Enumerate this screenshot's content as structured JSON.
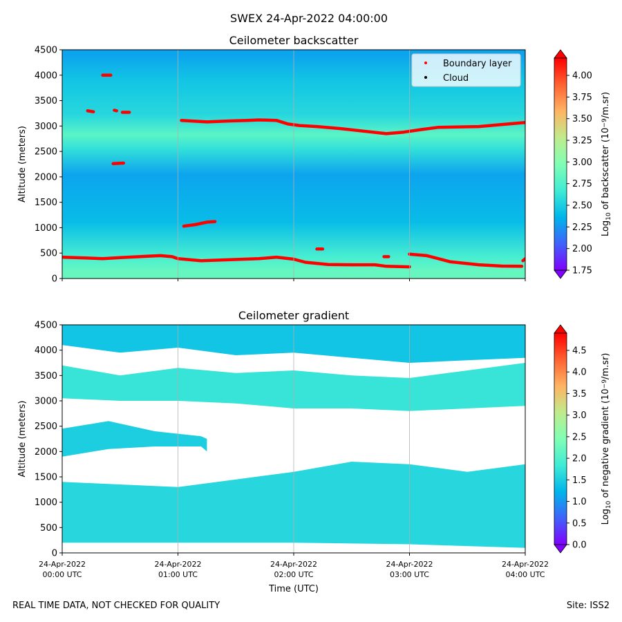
{
  "suptitle": "SWEX 24-Apr-2022 04:00:00",
  "footer": {
    "left": "REAL TIME DATA, NOT CHECKED FOR QUALITY",
    "right": "Site: ISS2"
  },
  "colors": {
    "boundary_layer": "#ff0000",
    "cloud": "#000000",
    "grid": "#b0b0b0",
    "colormap": [
      "#8000ff",
      "#4062fa",
      "#00b5eb",
      "#40ecd4",
      "#80ffb4",
      "#c0eb8d",
      "#ffb462",
      "#ff6232",
      "#ff0000"
    ]
  },
  "x_ticks": [
    {
      "l1": "24-Apr-2022",
      "l2": "00:00 UTC"
    },
    {
      "l1": "24-Apr-2022",
      "l2": "01:00 UTC"
    },
    {
      "l1": "24-Apr-2022",
      "l2": "02:00 UTC"
    },
    {
      "l1": "24-Apr-2022",
      "l2": "03:00 UTC"
    },
    {
      "l1": "24-Apr-2022",
      "l2": "04:00 UTC"
    }
  ],
  "xlabel": "Time (UTC)",
  "chart_data": [
    {
      "type": "heatmap",
      "title": "Ceilometer backscatter",
      "xlabel": "Time (UTC)",
      "ylabel": "Altitude (meters)",
      "xlim_hours": [
        0,
        4
      ],
      "ylim": [
        0,
        4500
      ],
      "yticks": [
        0,
        500,
        1000,
        1500,
        2000,
        2500,
        3000,
        3500,
        4000,
        4500
      ],
      "colorbar": {
        "label_prefix": "Log",
        "label_sub": "10",
        "label_mid": " of backscatter (10",
        "label_sup": "−9",
        "label_suffix": "/m.sr)",
        "range": [
          1.75,
          4.2
        ],
        "ticks": [
          "1.75",
          "2.00",
          "2.25",
          "2.50",
          "2.75",
          "3.00",
          "3.25",
          "3.50",
          "3.75",
          "4.00"
        ]
      },
      "legend": {
        "placement": "top-right",
        "items": [
          "Boundary layer",
          "Cloud"
        ]
      },
      "boundary_layer_series": [
        {
          "name": "bl-low",
          "points": [
            [
              0,
              420
            ],
            [
              0.2,
              405
            ],
            [
              0.35,
              390
            ],
            [
              0.5,
              410
            ],
            [
              0.75,
              440
            ],
            [
              0.85,
              450
            ],
            [
              0.95,
              430
            ],
            [
              1.0,
              390
            ],
            [
              1.2,
              350
            ],
            [
              1.45,
              370
            ],
            [
              1.7,
              390
            ],
            [
              1.85,
              420
            ],
            [
              2.0,
              380
            ],
            [
              2.1,
              320
            ],
            [
              2.3,
              275
            ],
            [
              2.5,
              270
            ],
            [
              2.7,
              270
            ],
            [
              2.8,
              240
            ],
            [
              3.0,
              230
            ]
          ]
        },
        {
          "name": "bl-low-2",
          "points": [
            [
              3.0,
              480
            ],
            [
              3.15,
              450
            ],
            [
              3.35,
              330
            ],
            [
              3.6,
              270
            ],
            [
              3.8,
              245
            ],
            [
              3.97,
              240
            ]
          ]
        },
        {
          "name": "bl-high",
          "points": [
            [
              1.03,
              3110
            ],
            [
              1.25,
              3080
            ],
            [
              1.45,
              3100
            ],
            [
              1.6,
              3110
            ],
            [
              1.7,
              3120
            ],
            [
              1.85,
              3110
            ],
            [
              1.95,
              3040
            ],
            [
              2.05,
              3010
            ],
            [
              2.2,
              2990
            ],
            [
              2.4,
              2950
            ],
            [
              2.6,
              2900
            ],
            [
              2.8,
              2850
            ],
            [
              2.95,
              2880
            ],
            [
              3.1,
              2930
            ],
            [
              3.25,
              2975
            ],
            [
              3.4,
              2980
            ],
            [
              3.6,
              2990
            ],
            [
              3.8,
              3030
            ],
            [
              4.0,
              3070
            ]
          ]
        },
        {
          "name": "bl-mid",
          "points": [
            [
              1.05,
              1030
            ],
            [
              1.15,
              1060
            ],
            [
              1.25,
              1110
            ],
            [
              1.32,
              1120
            ]
          ]
        },
        {
          "name": "seg-1",
          "points": [
            [
              0.35,
              4000
            ],
            [
              0.42,
              4000
            ]
          ]
        },
        {
          "name": "seg-2",
          "points": [
            [
              0.22,
              3300
            ],
            [
              0.27,
              3280
            ]
          ]
        },
        {
          "name": "seg-3",
          "points": [
            [
              0.45,
              3310
            ],
            [
              0.47,
              3300
            ]
          ]
        },
        {
          "name": "seg-4",
          "points": [
            [
              0.52,
              3270
            ],
            [
              0.58,
              3270
            ]
          ]
        },
        {
          "name": "seg-5",
          "points": [
            [
              0.44,
              2260
            ],
            [
              0.53,
              2270
            ]
          ]
        },
        {
          "name": "seg-6",
          "points": [
            [
              2.2,
              580
            ],
            [
              2.25,
              580
            ]
          ]
        },
        {
          "name": "seg-7",
          "points": [
            [
              2.78,
              430
            ],
            [
              2.82,
              430
            ]
          ]
        },
        {
          "name": "seg-8",
          "points": [
            [
              3.98,
              350
            ],
            [
              4.0,
              390
            ]
          ]
        }
      ],
      "bands": [
        {
          "y0": 0,
          "y1": 300,
          "v": 2.85
        },
        {
          "y0": 300,
          "y1": 550,
          "v": 2.7
        },
        {
          "y0": 550,
          "y1": 1700,
          "v": 2.4
        },
        {
          "y0": 1700,
          "y1": 2400,
          "v": 2.3
        },
        {
          "y0": 2400,
          "y1": 2700,
          "v": 2.6
        },
        {
          "y0": 2700,
          "y1": 2950,
          "v": 2.8
        },
        {
          "y0": 2950,
          "y1": 3500,
          "v": 2.55
        },
        {
          "y0": 3500,
          "y1": 4300,
          "v": 2.45
        },
        {
          "y0": 4300,
          "y1": 4500,
          "v": 2.3
        }
      ]
    },
    {
      "type": "heatmap",
      "title": "Ceilometer gradient",
      "xlabel": "Time (UTC)",
      "ylabel": "Altitude (meters)",
      "xlim_hours": [
        0,
        4
      ],
      "ylim": [
        0,
        4500
      ],
      "yticks": [
        0,
        500,
        1000,
        1500,
        2000,
        2500,
        3000,
        3500,
        4000,
        4500
      ],
      "colorbar": {
        "label_prefix": "Log",
        "label_sub": "10",
        "label_mid": " of negative gradient (10",
        "label_sup": "−9",
        "label_suffix": "/m.sr)",
        "range": [
          0,
          4.9
        ],
        "ticks": [
          "0.0",
          "0.5",
          "1.0",
          "1.5",
          "2.0",
          "2.5",
          "3.0",
          "3.5",
          "4.0",
          "4.5"
        ]
      },
      "bands": [
        {
          "name": "band-low",
          "lower": [
            [
              0,
              200
            ],
            [
              1,
              200
            ],
            [
              2,
              200
            ],
            [
              3,
              170
            ],
            [
              4,
              100
            ]
          ],
          "upper": [
            [
              0,
              1400
            ],
            [
              0.5,
              1350
            ],
            [
              1,
              1300
            ],
            [
              1.5,
              1450
            ],
            [
              2,
              1600
            ],
            [
              2.5,
              1800
            ],
            [
              3,
              1750
            ],
            [
              3.5,
              1600
            ],
            [
              4,
              1750
            ]
          ],
          "v": 1.6
        },
        {
          "name": "band-mid",
          "lower": [
            [
              0,
              1900
            ],
            [
              0.4,
              2050
            ],
            [
              0.8,
              2100
            ],
            [
              1.2,
              2100
            ],
            [
              1.25,
              2000
            ]
          ],
          "upper": [
            [
              0,
              2450
            ],
            [
              0.4,
              2600
            ],
            [
              0.8,
              2400
            ],
            [
              1.2,
              2300
            ],
            [
              1.25,
              2250
            ]
          ],
          "v": 1.5
        },
        {
          "name": "band-high",
          "lower": [
            [
              0,
              3050
            ],
            [
              0.5,
              3000
            ],
            [
              1,
              3000
            ],
            [
              1.5,
              2950
            ],
            [
              2,
              2850
            ],
            [
              2.5,
              2850
            ],
            [
              3,
              2800
            ],
            [
              3.5,
              2850
            ],
            [
              4,
              2900
            ]
          ],
          "upper": [
            [
              0,
              3700
            ],
            [
              0.5,
              3500
            ],
            [
              1,
              3650
            ],
            [
              1.5,
              3550
            ],
            [
              2,
              3600
            ],
            [
              2.5,
              3500
            ],
            [
              3,
              3450
            ],
            [
              3.5,
              3600
            ],
            [
              4,
              3750
            ]
          ],
          "v": 1.75
        },
        {
          "name": "band-top",
          "lower": [
            [
              0,
              4100
            ],
            [
              0.5,
              3950
            ],
            [
              1,
              4050
            ],
            [
              1.5,
              3900
            ],
            [
              2,
              3950
            ],
            [
              2.5,
              3850
            ],
            [
              3,
              3750
            ],
            [
              3.5,
              3800
            ],
            [
              4,
              3850
            ]
          ],
          "upper": [
            [
              0,
              4500
            ],
            [
              4,
              4500
            ]
          ],
          "v": 1.4
        }
      ]
    }
  ]
}
